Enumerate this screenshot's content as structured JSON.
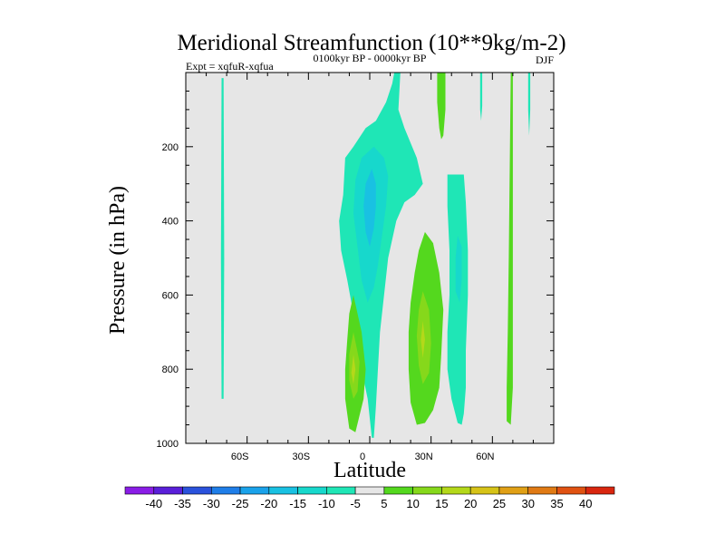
{
  "chart_data": {
    "type": "contour",
    "title": "Meridional Streamfunction (10**9kg/m-2)",
    "subtitle_left": "Expt = xqfuR-xqfua",
    "subtitle_center": "0100kyr BP - 0000kyr BP",
    "subtitle_right": "DJF",
    "xlabel": "Latitude",
    "ylabel": "Pressure (in hPa)",
    "xlim": [
      -90,
      90
    ],
    "ylim": [
      1000,
      0
    ],
    "x_ticks": [
      {
        "value": -60,
        "label": "60S"
      },
      {
        "value": -30,
        "label": "30S"
      },
      {
        "value": 0,
        "label": "0"
      },
      {
        "value": 30,
        "label": "30N"
      },
      {
        "value": 60,
        "label": "60N"
      }
    ],
    "y_ticks": [
      {
        "value": 200,
        "label": "200"
      },
      {
        "value": 400,
        "label": "400"
      },
      {
        "value": 600,
        "label": "600"
      },
      {
        "value": 800,
        "label": "800"
      },
      {
        "value": 1000,
        "label": "1000"
      }
    ],
    "background_color": "#e6e6e6",
    "colorbar": {
      "levels": [
        "-40",
        "-35",
        "-30",
        "-25",
        "-20",
        "-15",
        "-10",
        "-5",
        "5",
        "10",
        "15",
        "20",
        "25",
        "30",
        "35",
        "40"
      ],
      "colors": [
        "#8a1de6",
        "#5a1fd9",
        "#2a52dc",
        "#1f7ee8",
        "#1aa2ea",
        "#19c1e2",
        "#17d8cc",
        "#1fe6b6",
        "#e6e6e6",
        "#54d81e",
        "#86d81b",
        "#b4d81a",
        "#d6c318",
        "#e0a016",
        "#e07a14",
        "#e05212",
        "#d9260f"
      ]
    },
    "regions": [
      {
        "name": "far-sh-thin-negative",
        "level": -5,
        "color": "#1fe6b6",
        "points": [
          [
            -72.5,
            15
          ],
          [
            -71.5,
            15
          ],
          [
            -71.2,
            500
          ],
          [
            -71.5,
            880
          ],
          [
            -72.5,
            880
          ],
          [
            -72.8,
            500
          ]
        ]
      },
      {
        "name": "tropical-negative-cell",
        "level": -5,
        "color": "#1fe6b6",
        "points": [
          [
            12,
            0
          ],
          [
            15,
            0
          ],
          [
            14,
            100
          ],
          [
            17,
            150
          ],
          [
            23,
            230
          ],
          [
            26,
            300
          ],
          [
            22,
            330
          ],
          [
            17,
            350
          ],
          [
            13,
            400
          ],
          [
            9,
            500
          ],
          [
            7,
            600
          ],
          [
            5,
            700
          ],
          [
            4,
            800
          ],
          [
            3,
            900
          ],
          [
            2,
            985
          ],
          [
            1,
            985
          ],
          [
            -1,
            880
          ],
          [
            -4,
            800
          ],
          [
            -6,
            700
          ],
          [
            -9,
            620
          ],
          [
            -11,
            560
          ],
          [
            -14,
            480
          ],
          [
            -15,
            400
          ],
          [
            -13,
            330
          ],
          [
            -12,
            230
          ],
          [
            -8,
            200
          ],
          [
            -2,
            150
          ],
          [
            3,
            130
          ],
          [
            8,
            80
          ],
          [
            11,
            30
          ]
        ]
      },
      {
        "name": "tropical-negative-inner",
        "level": -10,
        "color": "#17d8cc",
        "points": [
          [
            2,
            200
          ],
          [
            7,
            230
          ],
          [
            9,
            280
          ],
          [
            8,
            360
          ],
          [
            6,
            440
          ],
          [
            4,
            520
          ],
          [
            2,
            580
          ],
          [
            -1,
            620
          ],
          [
            -4,
            560
          ],
          [
            -6,
            470
          ],
          [
            -8,
            380
          ],
          [
            -7,
            290
          ],
          [
            -4,
            230
          ]
        ]
      },
      {
        "name": "tropical-negative-core",
        "level": -15,
        "color": "#19c1e2",
        "points": [
          [
            1,
            260
          ],
          [
            3,
            300
          ],
          [
            3,
            360
          ],
          [
            2,
            420
          ],
          [
            0,
            470
          ],
          [
            -2,
            430
          ],
          [
            -3,
            360
          ],
          [
            -2,
            300
          ]
        ]
      },
      {
        "name": "sh-positive-cell",
        "level": 5,
        "color": "#54d81e",
        "points": [
          [
            -8,
            600
          ],
          [
            -4,
            700
          ],
          [
            -2,
            800
          ],
          [
            -3,
            880
          ],
          [
            -7,
            970
          ],
          [
            -10,
            960
          ],
          [
            -12,
            880
          ],
          [
            -12,
            800
          ],
          [
            -11,
            720
          ],
          [
            -10,
            650
          ]
        ]
      },
      {
        "name": "sh-positive-inner",
        "level": 10,
        "color": "#86d81b",
        "points": [
          [
            -8,
            700
          ],
          [
            -5,
            780
          ],
          [
            -6,
            860
          ],
          [
            -8,
            880
          ],
          [
            -10,
            830
          ],
          [
            -10,
            760
          ]
        ]
      },
      {
        "name": "sh-positive-core",
        "level": 15,
        "color": "#b4d81a",
        "points": [
          [
            -8,
            760
          ],
          [
            -7,
            800
          ],
          [
            -8,
            840
          ],
          [
            -9,
            810
          ]
        ]
      },
      {
        "name": "nh-positive-cell",
        "level": 5,
        "color": "#54d81e",
        "points": [
          [
            27,
            430
          ],
          [
            31,
            460
          ],
          [
            34,
            540
          ],
          [
            36,
            640
          ],
          [
            35,
            760
          ],
          [
            34,
            850
          ],
          [
            31,
            910
          ],
          [
            27,
            945
          ],
          [
            23,
            950
          ],
          [
            20,
            890
          ],
          [
            19,
            800
          ],
          [
            19,
            700
          ],
          [
            20,
            620
          ],
          [
            22,
            540
          ],
          [
            24,
            480
          ]
        ]
      },
      {
        "name": "nh-positive-inner",
        "level": 10,
        "color": "#86d81b",
        "points": [
          [
            26,
            590
          ],
          [
            29,
            640
          ],
          [
            30,
            730
          ],
          [
            29,
            810
          ],
          [
            26,
            840
          ],
          [
            24,
            790
          ],
          [
            23,
            710
          ],
          [
            24,
            640
          ]
        ]
      },
      {
        "name": "nh-positive-core",
        "level": 15,
        "color": "#b4d81a",
        "points": [
          [
            26,
            670
          ],
          [
            27,
            720
          ],
          [
            26,
            770
          ],
          [
            25,
            720
          ]
        ]
      },
      {
        "name": "nh-negative-cell",
        "level": -5,
        "color": "#1fe6b6",
        "points": [
          [
            38,
            275
          ],
          [
            46,
            275
          ],
          [
            47,
            350
          ],
          [
            48,
            480
          ],
          [
            48,
            600
          ],
          [
            47,
            750
          ],
          [
            47,
            850
          ],
          [
            46,
            920
          ],
          [
            45,
            950
          ],
          [
            43,
            945
          ],
          [
            40,
            880
          ],
          [
            38,
            800
          ],
          [
            38,
            700
          ],
          [
            39,
            600
          ],
          [
            39,
            480
          ],
          [
            38,
            360
          ]
        ]
      },
      {
        "name": "nh-negative-inner",
        "level": -10,
        "color": "#17d8cc",
        "points": [
          [
            43,
            440
          ],
          [
            45,
            470
          ],
          [
            45,
            560
          ],
          [
            44,
            620
          ],
          [
            42,
            590
          ],
          [
            42,
            500
          ]
        ]
      },
      {
        "name": "upper-positive-strip-1",
        "level": 5,
        "color": "#54d81e",
        "points": [
          [
            33,
            0
          ],
          [
            37,
            0
          ],
          [
            37,
            100
          ],
          [
            36,
            170
          ],
          [
            35,
            180
          ],
          [
            34,
            150
          ],
          [
            33,
            80
          ]
        ]
      },
      {
        "name": "upper-negative-strip",
        "level": -5,
        "color": "#1fe6b6",
        "points": [
          [
            54,
            0
          ],
          [
            55,
            0
          ],
          [
            55,
            90
          ],
          [
            54.5,
            130
          ],
          [
            54,
            100
          ]
        ]
      },
      {
        "name": "nh-thin-positive",
        "level": 5,
        "color": "#54d81e",
        "points": [
          [
            69,
            0
          ],
          [
            70,
            0
          ],
          [
            70,
            500
          ],
          [
            70,
            700
          ],
          [
            70,
            850
          ],
          [
            69,
            950
          ],
          [
            67,
            940
          ],
          [
            67,
            850
          ],
          [
            67.5,
            700
          ],
          [
            68,
            500
          ]
        ]
      },
      {
        "name": "nh-thin-negative",
        "level": -5,
        "color": "#1fe6b6",
        "points": [
          [
            77.5,
            0
          ],
          [
            78.5,
            0
          ],
          [
            78.5,
            100
          ],
          [
            78,
            170
          ],
          [
            77.5,
            100
          ]
        ]
      }
    ]
  }
}
